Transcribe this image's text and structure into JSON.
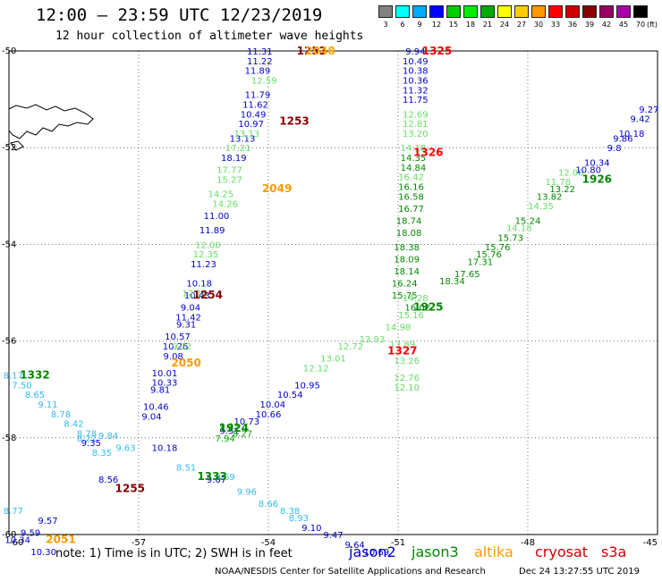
{
  "header": {
    "title": "12:00 – 23:59 UTC 12/23/2019",
    "subtitle": "12 hour collection of altimeter wave heights"
  },
  "legend": {
    "unit": "(ft)",
    "colors": [
      "#808080",
      "#00ffff",
      "#00aaff",
      "#0000ff",
      "#00cc00",
      "#00ee00",
      "#00aa00",
      "#ffff00",
      "#ffcc00",
      "#ff9900",
      "#ff0000",
      "#cc0000",
      "#880000",
      "#990066",
      "#aa00aa",
      "#000000"
    ],
    "labels": [
      "3",
      "6",
      "9",
      "12",
      "15",
      "18",
      "21",
      "24",
      "27",
      "30",
      "33",
      "36",
      "39",
      "42",
      "45",
      "70"
    ]
  },
  "map": {
    "lon_ticks": [
      "-60",
      "-57",
      "-54",
      "-51",
      "-48",
      "-45"
    ],
    "lat_ticks": [
      "-50",
      "-52",
      "-54",
      "-56",
      "-58",
      "-60"
    ],
    "lon_range": [
      -60,
      -45
    ],
    "lat_range": [
      -60,
      -50
    ]
  },
  "satellite_colors": {
    "jason2": "#0000cc",
    "jason3": "#008800",
    "altika": "#ff9900",
    "cryosat": "#cc0000",
    "s3a": "#cc0000",
    "light": "#33bbee",
    "green_light": "#66dd66"
  },
  "tracks": [
    {
      "name": "t1",
      "color": "#0000cc",
      "points": [
        {
          "lon": -54.2,
          "lat": -50.0,
          "v": "11.31"
        },
        {
          "lon": -54.2,
          "lat": -50.2,
          "v": "11.22"
        },
        {
          "lon": -54.25,
          "lat": -50.4,
          "v": "11.89"
        },
        {
          "lon": -54.25,
          "lat": -50.9,
          "v": "11.79"
        },
        {
          "lon": -54.3,
          "lat": -51.1,
          "v": "11.62"
        },
        {
          "lon": -54.35,
          "lat": -51.3,
          "v": "10.49"
        },
        {
          "lon": -54.4,
          "lat": -51.5,
          "v": "10.97"
        },
        {
          "lon": -54.6,
          "lat": -51.8,
          "v": "13.13"
        },
        {
          "lon": -54.8,
          "lat": -52.2,
          "v": "18.19"
        },
        {
          "lon": -55.2,
          "lat": -53.4,
          "v": "11.00"
        },
        {
          "lon": -55.3,
          "lat": -53.7,
          "v": "11.89"
        },
        {
          "lon": -55.5,
          "lat": -54.4,
          "v": "11.23"
        },
        {
          "lon": -55.6,
          "lat": -54.8,
          "v": "10.18"
        },
        {
          "lon": -55.65,
          "lat": -55.05,
          "v": "10.43"
        },
        {
          "lon": -55.8,
          "lat": -55.3,
          "v": "9.04"
        },
        {
          "lon": -55.85,
          "lat": -55.5,
          "v": "11.42"
        },
        {
          "lon": -55.9,
          "lat": -55.65,
          "v": "9.31"
        },
        {
          "lon": -56.1,
          "lat": -55.9,
          "v": "10.57"
        },
        {
          "lon": -56.15,
          "lat": -56.1,
          "v": "10.26"
        },
        {
          "lon": -56.2,
          "lat": -56.3,
          "v": "9.08"
        },
        {
          "lon": -56.4,
          "lat": -56.65,
          "v": "10.01"
        },
        {
          "lon": -56.4,
          "lat": -56.85,
          "v": "10.33"
        },
        {
          "lon": -56.5,
          "lat": -57.0,
          "v": "9.81"
        },
        {
          "lon": -56.6,
          "lat": -57.35,
          "v": "10.46"
        },
        {
          "lon": -56.7,
          "lat": -57.55,
          "v": "9.04"
        }
      ]
    },
    {
      "name": "t2",
      "color": "#66dd66",
      "points": [
        {
          "lon": -54.1,
          "lat": -50.6,
          "v": "12.59"
        },
        {
          "lon": -54.5,
          "lat": -51.7,
          "v": "13.13"
        },
        {
          "lon": -54.7,
          "lat": -52.0,
          "v": "17.21"
        },
        {
          "lon": -54.9,
          "lat": -52.45,
          "v": "17.77"
        },
        {
          "lon": -54.9,
          "lat": -52.65,
          "v": "15.27"
        },
        {
          "lon": -55.1,
          "lat": -52.95,
          "v": "14.25"
        },
        {
          "lon": -55.0,
          "lat": -53.15,
          "v": "14.26"
        },
        {
          "lon": -55.4,
          "lat": -54.0,
          "v": "12.00"
        },
        {
          "lon": -55.45,
          "lat": -54.2,
          "v": "12.35"
        },
        {
          "lon": -55.7,
          "lat": -55.0,
          "v": "12.16"
        },
        {
          "lon": -56.0,
          "lat": -56.1,
          "v": "9.22"
        }
      ]
    },
    {
      "name": "t3",
      "color": "#0000cc",
      "points": [
        {
          "lon": -50.6,
          "lat": -50.0,
          "v": "9.94"
        },
        {
          "lon": -50.6,
          "lat": -50.2,
          "v": "10.49"
        },
        {
          "lon": -50.6,
          "lat": -50.4,
          "v": "10.38"
        },
        {
          "lon": -50.6,
          "lat": -50.6,
          "v": "10.36"
        },
        {
          "lon": -50.6,
          "lat": -50.8,
          "v": "11.32"
        },
        {
          "lon": -50.6,
          "lat": -51.0,
          "v": "11.75"
        }
      ]
    },
    {
      "name": "t4",
      "color": "#66dd66",
      "points": [
        {
          "lon": -50.6,
          "lat": -51.3,
          "v": "12.69"
        },
        {
          "lon": -50.6,
          "lat": -51.5,
          "v": "12.81"
        },
        {
          "lon": -50.6,
          "lat": -51.7,
          "v": "13.20"
        },
        {
          "lon": -50.65,
          "lat": -52.0,
          "v": "14.18"
        },
        {
          "lon": -50.7,
          "lat": -52.6,
          "v": "16.42"
        }
      ]
    },
    {
      "name": "t5",
      "color": "#008800",
      "points": [
        {
          "lon": -50.65,
          "lat": -52.2,
          "v": "14.35"
        },
        {
          "lon": -50.65,
          "lat": -52.4,
          "v": "14.84"
        },
        {
          "lon": -50.7,
          "lat": -52.8,
          "v": "16.16"
        },
        {
          "lon": -50.7,
          "lat": -53.0,
          "v": "16.58"
        },
        {
          "lon": -50.7,
          "lat": -53.25,
          "v": "16.77"
        },
        {
          "lon": -50.75,
          "lat": -53.5,
          "v": "18.74"
        },
        {
          "lon": -50.75,
          "lat": -53.75,
          "v": "18.08"
        },
        {
          "lon": -50.8,
          "lat": -54.05,
          "v": "18.38"
        },
        {
          "lon": -50.8,
          "lat": -54.3,
          "v": "18.09"
        },
        {
          "lon": -50.8,
          "lat": -54.55,
          "v": "18.14"
        },
        {
          "lon": -50.85,
          "lat": -54.8,
          "v": "16.24"
        },
        {
          "lon": -50.85,
          "lat": -55.05,
          "v": "15.75"
        },
        {
          "lon": -50.55,
          "lat": -55.3,
          "v": "16.02"
        },
        {
          "lon": -49.75,
          "lat": -54.75,
          "v": "18.34"
        },
        {
          "lon": -49.4,
          "lat": -54.6,
          "v": "17.65"
        },
        {
          "lon": -49.1,
          "lat": -54.35,
          "v": "17.31"
        },
        {
          "lon": -48.9,
          "lat": -54.2,
          "v": "15.76"
        },
        {
          "lon": -48.7,
          "lat": -54.05,
          "v": "15.76"
        },
        {
          "lon": -48.4,
          "lat": -53.85,
          "v": "15.73"
        },
        {
          "lon": -48.0,
          "lat": -53.5,
          "v": "15.24"
        },
        {
          "lon": -47.5,
          "lat": -53.0,
          "v": "13.82"
        },
        {
          "lon": -47.2,
          "lat": -52.85,
          "v": "13.22"
        }
      ]
    },
    {
      "name": "t6",
      "color": "#66dd66",
      "points": [
        {
          "lon": -50.6,
          "lat": -55.1,
          "v": "14.28"
        },
        {
          "lon": -50.7,
          "lat": -55.45,
          "v": "15.16"
        },
        {
          "lon": -51.0,
          "lat": -55.7,
          "v": "14.98"
        },
        {
          "lon": -51.6,
          "lat": -55.95,
          "v": "13.93"
        },
        {
          "lon": -52.1,
          "lat": -56.1,
          "v": "12.72"
        },
        {
          "lon": -52.5,
          "lat": -56.35,
          "v": "13.01"
        },
        {
          "lon": -52.9,
          "lat": -56.55,
          "v": "12.12"
        },
        {
          "lon": -50.9,
          "lat": -56.05,
          "v": "13.89"
        },
        {
          "lon": -50.8,
          "lat": -56.4,
          "v": "13.26"
        },
        {
          "lon": -50.8,
          "lat": -56.75,
          "v": "12.76"
        },
        {
          "lon": -50.8,
          "lat": -56.95,
          "v": "12.10"
        },
        {
          "lon": -48.2,
          "lat": -53.65,
          "v": "14.18"
        },
        {
          "lon": -47.7,
          "lat": -53.2,
          "v": "14.35"
        },
        {
          "lon": -47.3,
          "lat": -52.7,
          "v": "11.78"
        },
        {
          "lon": -47.0,
          "lat": -52.5,
          "v": "12.08"
        }
      ]
    },
    {
      "name": "t7",
      "color": "#0000cc",
      "points": [
        {
          "lon": -53.1,
          "lat": -56.9,
          "v": "10.95"
        },
        {
          "lon": -53.5,
          "lat": -57.1,
          "v": "10.54"
        },
        {
          "lon": -53.9,
          "lat": -57.3,
          "v": "10.04"
        },
        {
          "lon": -54.0,
          "lat": -57.5,
          "v": "10.66"
        },
        {
          "lon": -54.5,
          "lat": -57.65,
          "v": "10.73"
        },
        {
          "lon": -54.9,
          "lat": -57.85,
          "v": "9.51"
        },
        {
          "lon": -46.6,
          "lat": -52.45,
          "v": "10.80"
        },
        {
          "lon": -46.4,
          "lat": -52.3,
          "v": "10.34"
        },
        {
          "lon": -46.0,
          "lat": -52.0,
          "v": "9.8"
        },
        {
          "lon": -45.8,
          "lat": -51.8,
          "v": "9.86"
        },
        {
          "lon": -45.6,
          "lat": -51.7,
          "v": "10.18"
        },
        {
          "lon": -45.4,
          "lat": -51.4,
          "v": "9.42"
        },
        {
          "lon": -45.2,
          "lat": -51.2,
          "v": "9.27"
        },
        {
          "lon": -56.4,
          "lat": -58.2,
          "v": "10.18"
        }
      ]
    },
    {
      "name": "t8",
      "color": "#33bbee",
      "points": [
        {
          "lon": -59.9,
          "lat": -56.7,
          "v": "8.17"
        },
        {
          "lon": -59.7,
          "lat": -56.9,
          "v": "7.50"
        },
        {
          "lon": -59.4,
          "lat": -57.1,
          "v": "8.65"
        },
        {
          "lon": -59.1,
          "lat": -57.3,
          "v": "9.11"
        },
        {
          "lon": -58.8,
          "lat": -57.5,
          "v": "8.78"
        },
        {
          "lon": -58.5,
          "lat": -57.7,
          "v": "8.42"
        },
        {
          "lon": -58.2,
          "lat": -57.9,
          "v": "8.78"
        },
        {
          "lon": -57.7,
          "lat": -57.95,
          "v": "9.84"
        },
        {
          "lon": -57.3,
          "lat": -58.2,
          "v": "9.63"
        },
        {
          "lon": -55.9,
          "lat": -58.6,
          "v": "8.51"
        },
        {
          "lon": -55.0,
          "lat": -58.8,
          "v": "8.69"
        },
        {
          "lon": -54.5,
          "lat": -59.1,
          "v": "9.96"
        },
        {
          "lon": -54.0,
          "lat": -59.35,
          "v": "8.66"
        },
        {
          "lon": -53.5,
          "lat": -59.5,
          "v": "8.38"
        },
        {
          "lon": -53.3,
          "lat": -59.65,
          "v": "8.93"
        },
        {
          "lon": -58.2,
          "lat": -58.0,
          "v": "8.22"
        },
        {
          "lon": -57.85,
          "lat": -58.3,
          "v": "8.35"
        },
        {
          "lon": -59.9,
          "lat": -59.5,
          "v": "8.77"
        }
      ]
    },
    {
      "name": "t9",
      "color": "#0000cc",
      "points": [
        {
          "lon": -55.2,
          "lat": -58.85,
          "v": "9.67"
        },
        {
          "lon": -53.0,
          "lat": -59.85,
          "v": "9.10"
        },
        {
          "lon": -52.5,
          "lat": -60.0,
          "v": "9.47"
        },
        {
          "lon": -52.0,
          "lat": -60.2,
          "v": "9.64"
        },
        {
          "lon": -51.5,
          "lat": -60.35,
          "v": "10.69"
        },
        {
          "lon": -57.7,
          "lat": -58.85,
          "v": "8.56"
        },
        {
          "lon": -58.1,
          "lat": -58.1,
          "v": "9.35"
        },
        {
          "lon": -59.1,
          "lat": -59.7,
          "v": "9.57"
        },
        {
          "lon": -59.5,
          "lat": -59.95,
          "v": "9.59"
        },
        {
          "lon": -59.8,
          "lat": -60.1,
          "v": "10.34"
        },
        {
          "lon": -59.2,
          "lat": -60.35,
          "v": "10.30"
        }
      ]
    },
    {
      "name": "t10",
      "color": "#00aa00",
      "points": [
        {
          "lon": -55.0,
          "lat": -58.0,
          "v": "7.94"
        },
        {
          "lon": -54.6,
          "lat": -57.9,
          "v": "8.27"
        },
        {
          "lon": -54.9,
          "lat": -57.75,
          "v": "9.93"
        }
      ]
    }
  ],
  "pass_labels": [
    {
      "text": "1252",
      "lon": -53.0,
      "lat": -50.0,
      "color": "#880000"
    },
    {
      "text": "2048",
      "lon": -52.8,
      "lat": -50.0,
      "color": "#ffaa00"
    },
    {
      "text": "1253",
      "lon": -53.4,
      "lat": -51.45,
      "color": "#880000"
    },
    {
      "text": "2049",
      "lon": -53.8,
      "lat": -52.85,
      "color": "#ff9900"
    },
    {
      "text": "1254",
      "lon": -55.4,
      "lat": -55.05,
      "color": "#880000"
    },
    {
      "text": "2050",
      "lon": -55.9,
      "lat": -56.45,
      "color": "#ff9900"
    },
    {
      "text": "1255",
      "lon": -57.2,
      "lat": -59.05,
      "color": "#880000"
    },
    {
      "text": "2051",
      "lon": -58.8,
      "lat": -60.1,
      "color": "#ff9900"
    },
    {
      "text": "1332",
      "lon": -59.4,
      "lat": -56.7,
      "color": "#008800"
    },
    {
      "text": "1333",
      "lon": -55.3,
      "lat": -58.8,
      "color": "#008800"
    },
    {
      "text": "1924",
      "lon": -54.8,
      "lat": -57.8,
      "color": "#008800"
    },
    {
      "text": "1925",
      "lon": -50.3,
      "lat": -55.3,
      "color": "#008800"
    },
    {
      "text": "1926",
      "lon": -46.4,
      "lat": -52.65,
      "color": "#008800"
    },
    {
      "text": "1325",
      "lon": -50.1,
      "lat": -50.0,
      "color": "#ff0000"
    },
    {
      "text": "1326",
      "lon": -50.3,
      "lat": -52.1,
      "color": "#ff0000"
    },
    {
      "text": "1327",
      "lon": -50.9,
      "lat": -56.2,
      "color": "#ff0000"
    }
  ],
  "footer": {
    "note": "note:  1) Time is in UTC; 2) SWH is in feet",
    "sat_jason2": "jason2",
    "sat_jason3": "jason3",
    "sat_altika": "altika",
    "sat_cryosat": "cryosat",
    "sat_s3a": "s3a",
    "credit": "NOAA/NESDIS Center for Satellite Applications and Research",
    "date": "Dec 24 13:27:55 UTC 2019"
  }
}
